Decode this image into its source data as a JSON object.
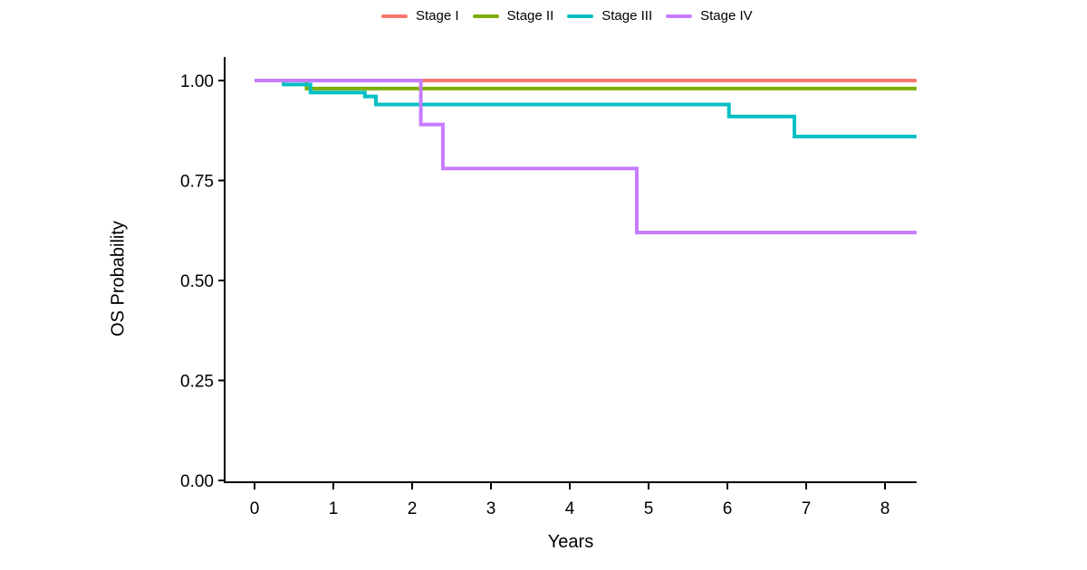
{
  "figure": {
    "background": "#ffffff",
    "axis_color": "#000000",
    "text_color": "#000000"
  },
  "chart_data": {
    "type": "line",
    "subtype": "kaplan_meier_step",
    "title": "",
    "xlabel": "Years",
    "ylabel": "OS Probability",
    "xlim": [
      0,
      8.4
    ],
    "ylim": [
      0,
      1.0
    ],
    "x_end": 8.4,
    "x_ticks": [
      0,
      1,
      2,
      3,
      4,
      5,
      6,
      7,
      8
    ],
    "x_tick_labels": [
      "0",
      "1",
      "2",
      "3",
      "4",
      "5",
      "6",
      "7",
      "8"
    ],
    "y_ticks": [
      0,
      0.25,
      0.5,
      0.75,
      1
    ],
    "y_tick_labels": [
      "0.00",
      "0.25",
      "0.50",
      "0.75",
      "1.00"
    ],
    "grid": false,
    "legend_position": "top-center",
    "series": [
      {
        "name": "Stage I",
        "color": "#F8766D",
        "points": [
          [
            0,
            1.0
          ],
          [
            8.4,
            1.0
          ]
        ]
      },
      {
        "name": "Stage II",
        "color": "#7CAE00",
        "points": [
          [
            0,
            1.0
          ],
          [
            0.66,
            0.98
          ],
          [
            8.4,
            0.98
          ]
        ]
      },
      {
        "name": "Stage III",
        "color": "#00BFC4",
        "points": [
          [
            0,
            1.0
          ],
          [
            0.37,
            0.99
          ],
          [
            0.71,
            0.97
          ],
          [
            1.4,
            0.96
          ],
          [
            1.54,
            0.94
          ],
          [
            6.02,
            0.91
          ],
          [
            6.85,
            0.86
          ],
          [
            8.4,
            0.86
          ]
        ]
      },
      {
        "name": "Stage IV",
        "color": "#C77CFF",
        "points": [
          [
            0,
            1.0
          ],
          [
            2.11,
            0.89
          ],
          [
            2.39,
            0.78
          ],
          [
            4.85,
            0.62
          ],
          [
            8.4,
            0.62
          ]
        ]
      }
    ]
  }
}
